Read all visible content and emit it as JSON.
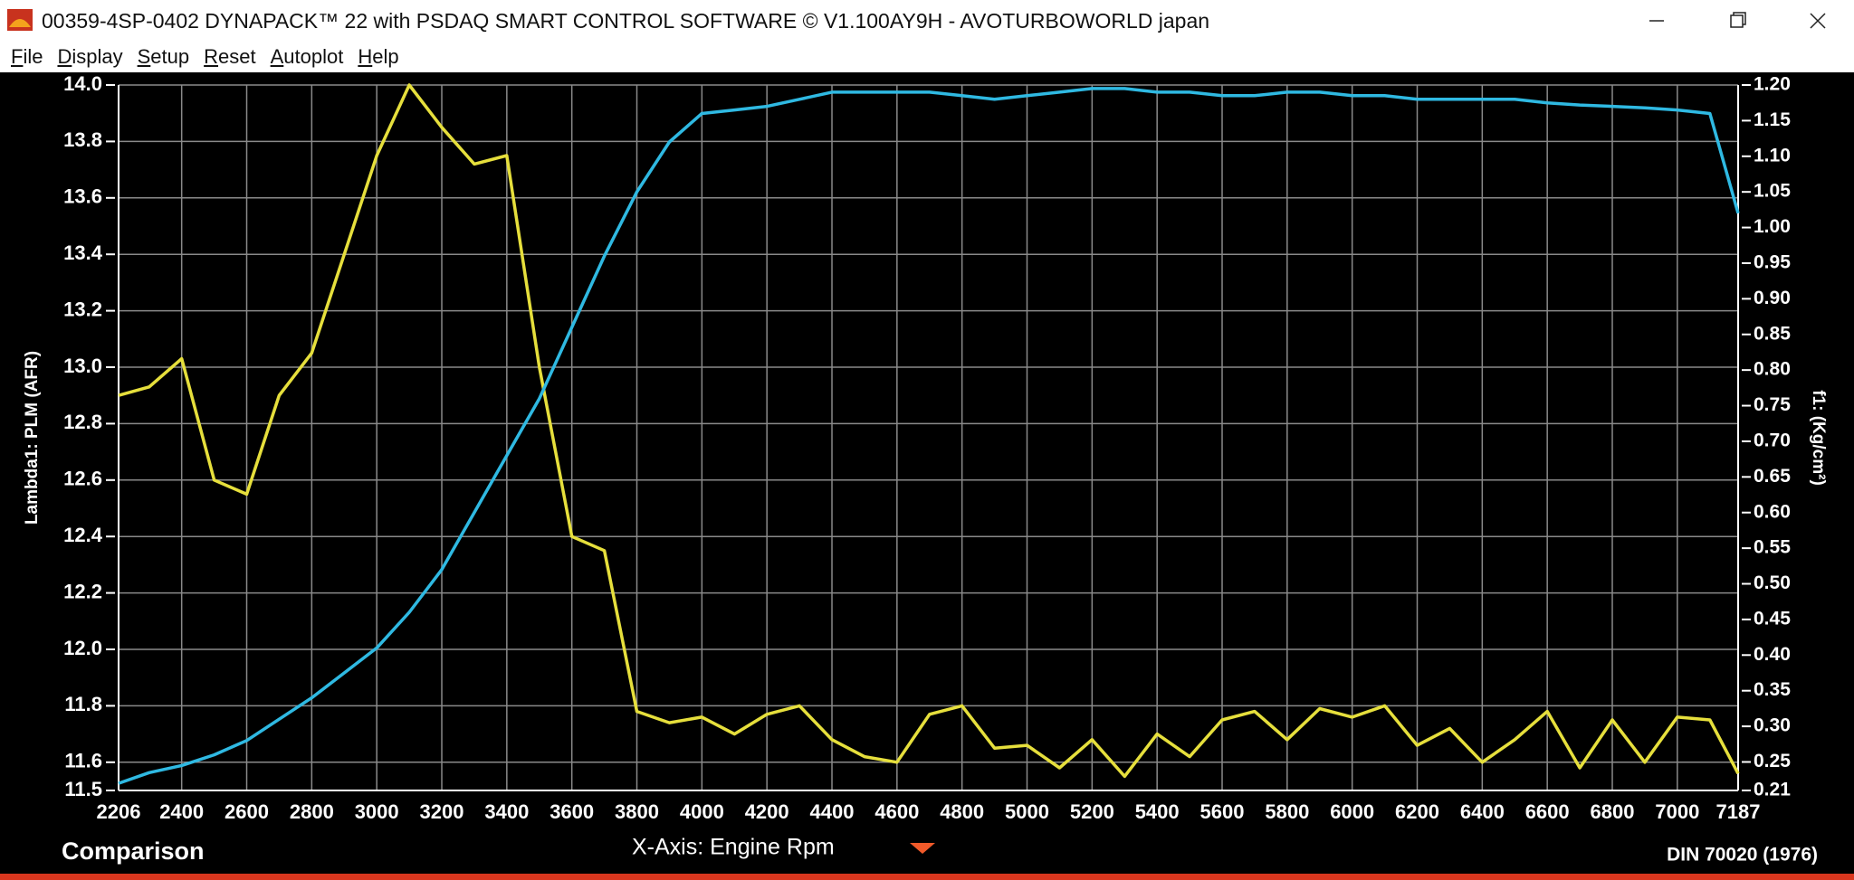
{
  "window": {
    "title": "00359-4SP-0402 DYNAPACK™ 22 with PSDAQ SMART CONTROL SOFTWARE © V1.100AY9H - AVOTURBOWORLD japan",
    "menu": [
      "File",
      "Display",
      "Setup",
      "Reset",
      "Autoplot",
      "Help"
    ]
  },
  "footer": {
    "left": "Comparison",
    "center": "X-Axis: Engine Rpm",
    "right": "DIN 70020 (1976)"
  },
  "chart_data": {
    "type": "line",
    "y_label": "Lambda1: PLM (AFR)",
    "y2_label": "f1: (Kg/cm²)",
    "grid": true,
    "x": [
      2206,
      2300,
      2400,
      2500,
      2600,
      2700,
      2800,
      2900,
      3000,
      3100,
      3200,
      3300,
      3400,
      3500,
      3600,
      3700,
      3800,
      3900,
      4000,
      4100,
      4200,
      4300,
      4400,
      4500,
      4600,
      4700,
      4800,
      4900,
      5000,
      5100,
      5200,
      5300,
      5400,
      5500,
      5600,
      5700,
      5800,
      5900,
      6000,
      6100,
      6200,
      6300,
      6400,
      6500,
      6600,
      6700,
      6800,
      6900,
      7000,
      7100,
      7187
    ],
    "xlim": [
      2206,
      7187
    ],
    "xticks": [
      2206,
      2400,
      2600,
      2800,
      3000,
      3200,
      3400,
      3600,
      3800,
      4000,
      4200,
      4400,
      4600,
      4800,
      5000,
      5200,
      5400,
      5600,
      5800,
      6000,
      6200,
      6400,
      6600,
      6800,
      7000,
      7187
    ],
    "ylim": [
      11.5,
      14.0
    ],
    "yticks": [
      11.5,
      11.6,
      11.8,
      {
        "value": 12.0,
        "label": "12.0"
      },
      12.2,
      12.4,
      12.6,
      12.8,
      {
        "value": 13.0,
        "label": "13.0"
      },
      13.2,
      13.4,
      13.6,
      13.8,
      {
        "value": 14.0,
        "label": "14.0"
      }
    ],
    "y2lim": [
      0.21,
      1.2
    ],
    "y2ticks": [
      0.21,
      0.25,
      {
        "value": 0.3,
        "label": "0.30"
      },
      0.35,
      {
        "value": 0.4,
        "label": "0.40"
      },
      0.45,
      {
        "value": 0.5,
        "label": "0.50"
      },
      0.55,
      {
        "value": 0.6,
        "label": "0.60"
      },
      0.65,
      {
        "value": 0.7,
        "label": "0.70"
      },
      0.75,
      {
        "value": 0.8,
        "label": "0.80"
      },
      0.85,
      {
        "value": 0.9,
        "label": "0.90"
      },
      0.95,
      {
        "value": 1.0,
        "label": "1.00"
      },
      1.05,
      {
        "value": 1.1,
        "label": "1.10"
      },
      1.15,
      {
        "value": 1.2,
        "label": "1.20"
      }
    ],
    "series": [
      {
        "name": "Lambda1: PLM (AFR)",
        "color": "#e6df3c",
        "axis": "y",
        "values": [
          12.9,
          12.93,
          13.03,
          12.6,
          12.55,
          12.9,
          13.05,
          13.4,
          13.75,
          14.0,
          13.85,
          13.72,
          13.75,
          13.0,
          12.4,
          12.35,
          11.78,
          11.74,
          11.76,
          11.7,
          11.77,
          11.8,
          11.68,
          11.62,
          11.6,
          11.77,
          11.8,
          11.65,
          11.66,
          11.58,
          11.68,
          11.55,
          11.7,
          11.62,
          11.75,
          11.78,
          11.68,
          11.79,
          11.76,
          11.8,
          11.66,
          11.72,
          11.6,
          11.68,
          11.78,
          11.58,
          11.75,
          11.6,
          11.76,
          11.75,
          11.56
        ]
      },
      {
        "name": "f1: (Kg/cm²)",
        "color": "#2fb9e2",
        "axis": "y2",
        "values": [
          0.22,
          0.235,
          0.245,
          0.26,
          0.28,
          0.31,
          0.34,
          0.375,
          0.41,
          0.46,
          0.52,
          0.6,
          0.68,
          0.76,
          0.86,
          0.96,
          1.05,
          1.12,
          1.16,
          1.165,
          1.17,
          1.18,
          1.19,
          1.19,
          1.19,
          1.19,
          1.185,
          1.18,
          1.185,
          1.19,
          1.195,
          1.195,
          1.19,
          1.19,
          1.185,
          1.185,
          1.19,
          1.19,
          1.185,
          1.185,
          1.18,
          1.18,
          1.18,
          1.18,
          1.175,
          1.172,
          1.17,
          1.168,
          1.165,
          1.16,
          1.02
        ]
      }
    ]
  }
}
